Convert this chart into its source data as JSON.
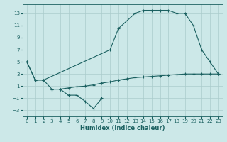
{
  "bg_color": "#cce8e8",
  "grid_color": "#aacccc",
  "line_color": "#1a6060",
  "line1_x": [
    0,
    1,
    2,
    10,
    11,
    13,
    14,
    15,
    16,
    17,
    18,
    19,
    20,
    21,
    22,
    23
  ],
  "line1_y": [
    5,
    2,
    2,
    7,
    10.5,
    13,
    13.5,
    13.5,
    13.5,
    13.5,
    13,
    13,
    11,
    7,
    5,
    3
  ],
  "line2_x": [
    0,
    1,
    2,
    3,
    4,
    5,
    6,
    7,
    8,
    9,
    10,
    11,
    12,
    13,
    14,
    15,
    16,
    17,
    18,
    19,
    20,
    21,
    22,
    23
  ],
  "line2_y": [
    5,
    2,
    2,
    0.5,
    0.5,
    0.7,
    0.9,
    1.0,
    1.2,
    1.5,
    1.7,
    2.0,
    2.2,
    2.4,
    2.5,
    2.6,
    2.7,
    2.8,
    2.9,
    3.0,
    3.0,
    3.0,
    3.0,
    3.0
  ],
  "line3_x": [
    3,
    4,
    5,
    6,
    7,
    8,
    9
  ],
  "line3_y": [
    0.5,
    0.5,
    -0.5,
    -0.5,
    -1.5,
    -2.7,
    -1.0
  ],
  "xlim": [
    -0.5,
    23.5
  ],
  "ylim": [
    -4,
    14.5
  ],
  "xticks": [
    0,
    1,
    2,
    3,
    4,
    5,
    6,
    7,
    8,
    9,
    10,
    11,
    12,
    13,
    14,
    15,
    16,
    17,
    18,
    19,
    20,
    21,
    22,
    23
  ],
  "yticks": [
    -3,
    -1,
    1,
    3,
    5,
    7,
    9,
    11,
    13
  ],
  "xlabel": "Humidex (Indice chaleur)",
  "marker": "+",
  "linewidth": 0.8,
  "markersize": 3,
  "xlabel_fontsize": 6,
  "tick_fontsize": 5
}
